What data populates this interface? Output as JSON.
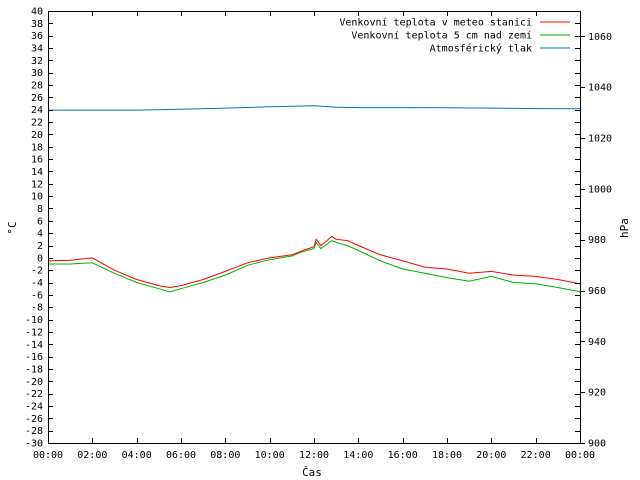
{
  "chart_data": {
    "type": "line",
    "xlabel": "Čas",
    "ylabel": "°C",
    "y2label": "hPa",
    "x_ticks": [
      "00:00",
      "02:00",
      "04:00",
      "06:00",
      "08:00",
      "10:00",
      "12:00",
      "14:00",
      "16:00",
      "18:00",
      "20:00",
      "22:00",
      "00:00"
    ],
    "xlim": [
      0,
      24
    ],
    "ylim": [
      -30,
      40
    ],
    "y_step": 2,
    "y2lim": [
      900,
      1070
    ],
    "y2_ticks": [
      900,
      920,
      940,
      960,
      980,
      1000,
      1020,
      1040,
      1060
    ],
    "grid": false,
    "legend_position": "top-right",
    "series": [
      {
        "name": "Venkovní teplota v meteo stanici",
        "color": "#ff0000",
        "axis": "left",
        "x": [
          0,
          1,
          2,
          3,
          4,
          5,
          5.5,
          6,
          7,
          8,
          9,
          10,
          11,
          11.5,
          12,
          12.1,
          12.3,
          12.5,
          12.8,
          13,
          13.5,
          14,
          15,
          16,
          17,
          18,
          19,
          20,
          21,
          22,
          23,
          24
        ],
        "values": [
          -0.5,
          -0.4,
          0.0,
          -2.0,
          -3.5,
          -4.5,
          -4.8,
          -4.5,
          -3.5,
          -2.2,
          -0.8,
          0.0,
          0.5,
          1.2,
          1.8,
          3.0,
          2.0,
          2.5,
          3.5,
          3.0,
          2.8,
          2.0,
          0.5,
          -0.5,
          -1.5,
          -1.8,
          -2.5,
          -2.2,
          -2.8,
          -3.0,
          -3.5,
          -4.2
        ]
      },
      {
        "name": "Venkovní teplota 5 cm nad zemí",
        "color": "#00b000",
        "axis": "left",
        "x": [
          0,
          1,
          2,
          3,
          4,
          5,
          5.5,
          6,
          7,
          8,
          9,
          10,
          11,
          11.5,
          12,
          12.1,
          12.3,
          12.5,
          12.8,
          13,
          13.5,
          14,
          15,
          16,
          17,
          18,
          19,
          20,
          21,
          22,
          23,
          24
        ],
        "values": [
          -1.0,
          -1.0,
          -0.8,
          -2.5,
          -4.0,
          -5.0,
          -5.5,
          -5.0,
          -4.0,
          -2.8,
          -1.2,
          -0.3,
          0.3,
          1.0,
          1.5,
          2.5,
          1.5,
          2.0,
          2.8,
          2.5,
          2.0,
          1.2,
          -0.5,
          -1.8,
          -2.5,
          -3.2,
          -3.8,
          -3.0,
          -4.0,
          -4.2,
          -4.8,
          -5.5
        ]
      },
      {
        "name": "Atmosférický tlak",
        "color": "#0070c0",
        "axis": "right",
        "x": [
          0,
          2,
          4,
          6,
          8,
          10,
          11,
          12,
          12.5,
          13,
          14,
          16,
          18,
          20,
          22,
          24
        ],
        "values": [
          1031.0,
          1031.0,
          1031.0,
          1031.3,
          1031.8,
          1032.3,
          1032.5,
          1032.7,
          1032.4,
          1032.2,
          1032.0,
          1032.0,
          1031.9,
          1031.8,
          1031.6,
          1031.5
        ]
      }
    ]
  }
}
